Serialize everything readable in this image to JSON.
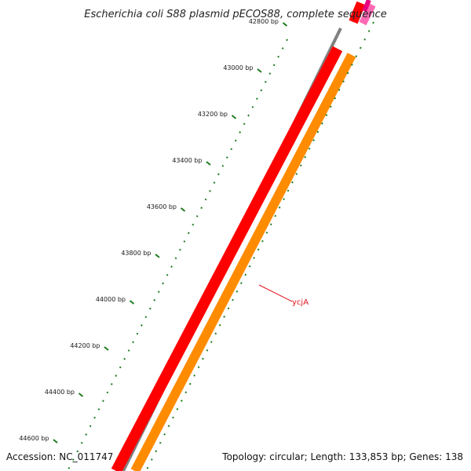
{
  "title": "Escherichia coli S88 plasmid pECOS88, complete sequence",
  "accession": "Accession: NC_011747",
  "summary": "Topology: circular; Length: 133,853 bp; Genes: 138",
  "tick_labels": [
    "42800 bp",
    "43000 bp",
    "43200 bp",
    "43400 bp",
    "43600 bp",
    "43800 bp",
    "44000 bp",
    "44200 bp",
    "44400 bp",
    "44600 bp"
  ],
  "gene_label": "ycjA",
  "colors": {
    "backbone": "#808080",
    "red_track": "#ff0000",
    "orange_track": "#ff8c00",
    "pink_track": "#ff69b4",
    "magenta_track": "#e6007e",
    "tick": "#1e7b1e",
    "gene_label": "#e0141e"
  }
}
